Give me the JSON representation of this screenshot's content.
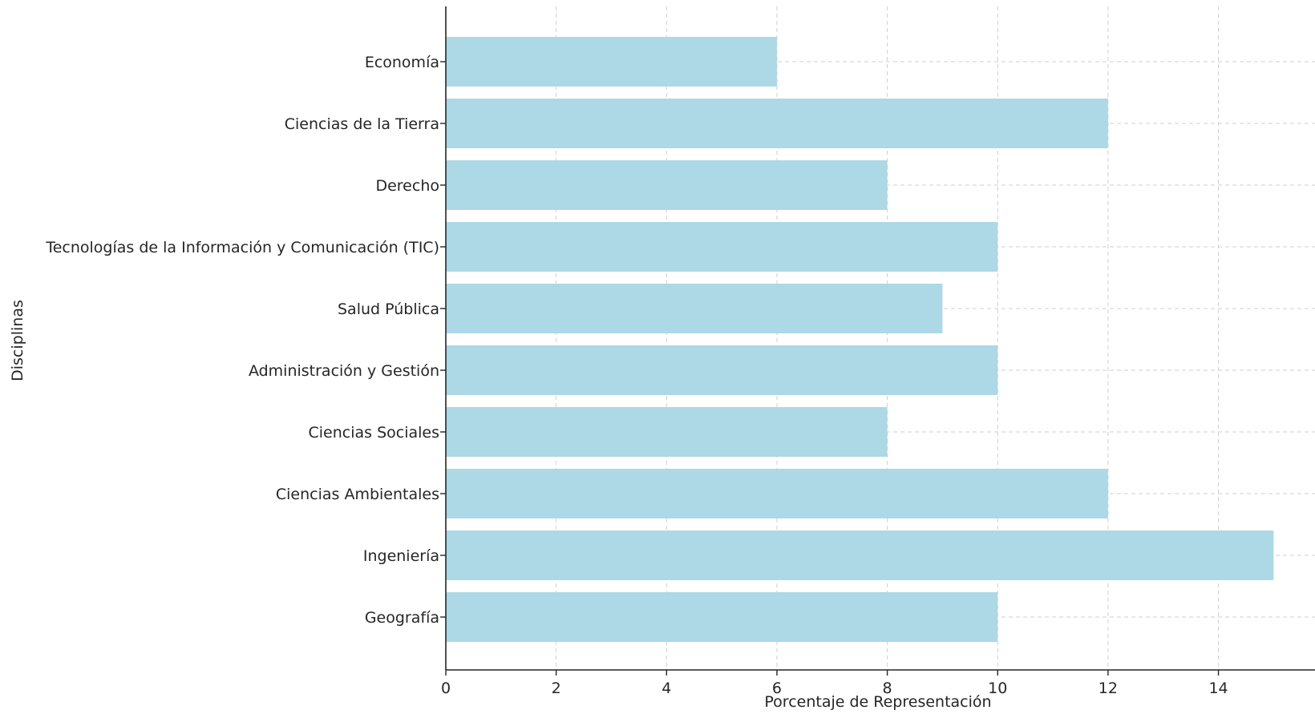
{
  "chart_data": {
    "type": "bar",
    "orientation": "horizontal",
    "title": "",
    "xlabel": "Porcentaje de Representación",
    "ylabel": "Disciplinas",
    "categories": [
      "Geografía",
      "Ingeniería",
      "Ciencias Ambientales",
      "Ciencias Sociales",
      "Administración y Gestión",
      "Salud Pública",
      "Tecnologías de la Información y Comunicación (TIC)",
      "Derecho",
      "Ciencias de la Tierra",
      "Economía"
    ],
    "values": [
      10,
      15,
      12,
      8,
      10,
      9,
      10,
      8,
      12,
      6
    ],
    "xlim": [
      0,
      15.75
    ],
    "xticks": [
      0,
      2,
      4,
      6,
      8,
      10,
      12,
      14
    ],
    "xtick_labels": [
      "0",
      "2",
      "4",
      "6",
      "8",
      "10",
      "12",
      "14"
    ],
    "grid": true,
    "bar_color": "#add8e6"
  }
}
